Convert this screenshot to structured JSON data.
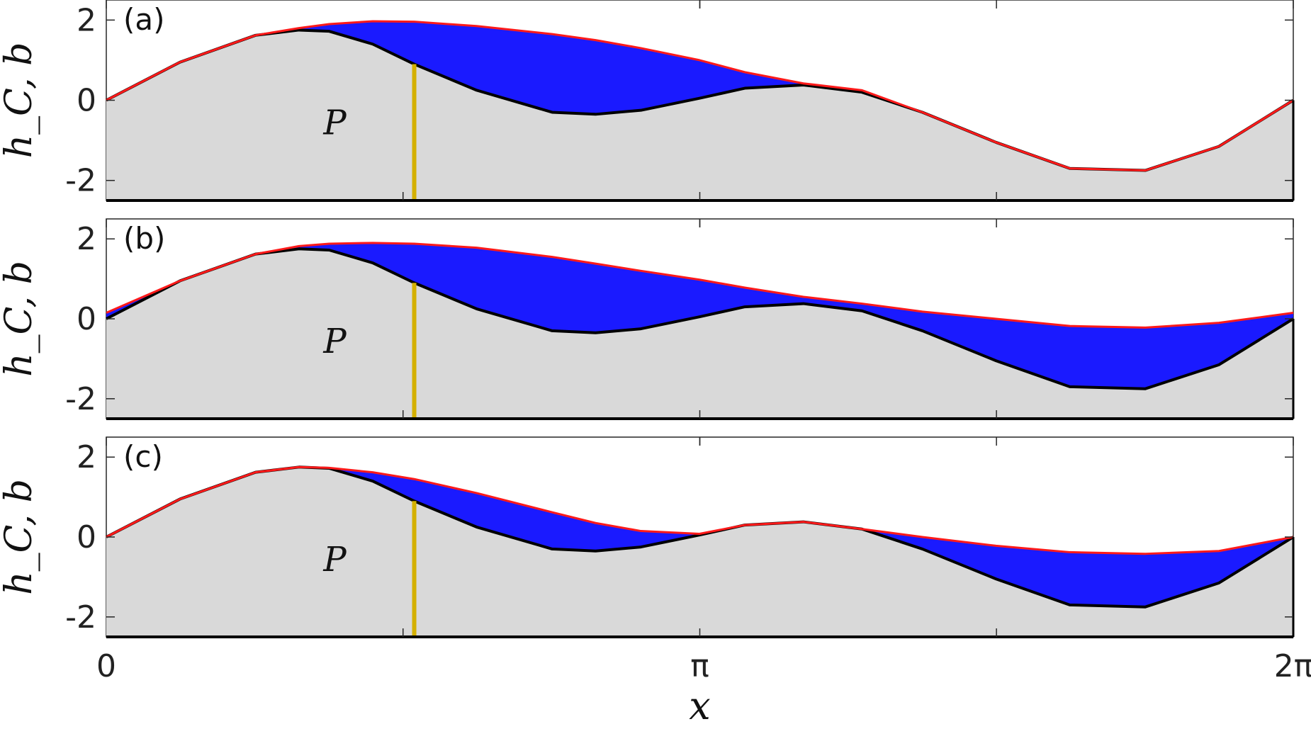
{
  "chart_data": [
    {
      "type": "area",
      "panel_label": "(a)",
      "region_label": "P",
      "ylabel": "h_C, b",
      "xlabel": "",
      "xlim": [
        0,
        6.2832
      ],
      "ylim": [
        -2.5,
        2.5
      ],
      "yticks": [
        -2,
        0,
        2
      ],
      "ytick_labels": [
        "-2",
        "0",
        "2"
      ],
      "marker_x": 1.63,
      "series": [
        {
          "role": "bed",
          "color": "#000000",
          "x": [
            0,
            0.39,
            0.79,
            1.02,
            1.18,
            1.41,
            1.63,
            1.96,
            2.36,
            2.59,
            2.83,
            3.14,
            3.38,
            3.69,
            4.0,
            4.32,
            4.71,
            5.1,
            5.5,
            5.89,
            6.2832
          ],
          "y": [
            0,
            0.95,
            1.62,
            1.75,
            1.72,
            1.4,
            0.9,
            0.25,
            -0.3,
            -0.35,
            -0.25,
            0.05,
            0.3,
            0.38,
            0.2,
            -0.3,
            -1.05,
            -1.7,
            -1.75,
            -1.15,
            0
          ]
        },
        {
          "role": "surface",
          "color": "#ff1a1a",
          "x": [
            0,
            0.39,
            0.79,
            1.02,
            1.18,
            1.41,
            1.63,
            1.96,
            2.36,
            2.59,
            2.83,
            3.14,
            3.38,
            3.69,
            4.0,
            4.32,
            4.71,
            5.1,
            5.5,
            5.89,
            6.2832
          ],
          "y": [
            0,
            0.95,
            1.62,
            1.8,
            1.9,
            1.97,
            1.96,
            1.85,
            1.65,
            1.5,
            1.3,
            1.0,
            0.7,
            0.42,
            0.25,
            -0.3,
            -1.05,
            -1.7,
            -1.75,
            -1.15,
            0
          ]
        }
      ]
    },
    {
      "type": "area",
      "panel_label": "(b)",
      "region_label": "P",
      "ylabel": "h_C, b",
      "xlabel": "",
      "xlim": [
        0,
        6.2832
      ],
      "ylim": [
        -2.5,
        2.5
      ],
      "yticks": [
        -2,
        0,
        2
      ],
      "ytick_labels": [
        "-2",
        "0",
        "2"
      ],
      "marker_x": 1.63,
      "series": [
        {
          "role": "bed",
          "color": "#000000",
          "x": [
            0,
            0.39,
            0.79,
            1.02,
            1.18,
            1.41,
            1.63,
            1.96,
            2.36,
            2.59,
            2.83,
            3.14,
            3.38,
            3.69,
            4.0,
            4.32,
            4.71,
            5.1,
            5.5,
            5.89,
            6.2832
          ],
          "y": [
            0,
            0.95,
            1.62,
            1.75,
            1.72,
            1.4,
            0.9,
            0.25,
            -0.3,
            -0.35,
            -0.25,
            0.05,
            0.3,
            0.38,
            0.2,
            -0.3,
            -1.05,
            -1.7,
            -1.75,
            -1.15,
            0
          ]
        },
        {
          "role": "surface",
          "color": "#ff1a1a",
          "x": [
            0,
            0.39,
            0.79,
            1.02,
            1.18,
            1.41,
            1.63,
            1.96,
            2.36,
            2.59,
            2.83,
            3.14,
            3.38,
            3.69,
            4.0,
            4.32,
            4.71,
            5.1,
            5.5,
            5.89,
            6.2832
          ],
          "y": [
            0.15,
            0.95,
            1.62,
            1.82,
            1.88,
            1.9,
            1.88,
            1.78,
            1.55,
            1.38,
            1.2,
            0.98,
            0.78,
            0.55,
            0.38,
            0.18,
            0.0,
            -0.18,
            -0.22,
            -0.1,
            0.15
          ]
        }
      ]
    },
    {
      "type": "area",
      "panel_label": "(c)",
      "region_label": "P",
      "ylabel": "h_C, b",
      "xlabel": "x",
      "xlim": [
        0,
        6.2832
      ],
      "ylim": [
        -2.5,
        2.5
      ],
      "yticks": [
        -2,
        0,
        2
      ],
      "ytick_labels": [
        "-2",
        "0",
        "2"
      ],
      "xticks": [
        0,
        3.1416,
        6.2832
      ],
      "xtick_labels": [
        "0",
        "π",
        "2π"
      ],
      "marker_x": 1.63,
      "series": [
        {
          "role": "bed",
          "color": "#000000",
          "x": [
            0,
            0.39,
            0.79,
            1.02,
            1.18,
            1.41,
            1.63,
            1.96,
            2.36,
            2.59,
            2.83,
            3.14,
            3.38,
            3.69,
            4.0,
            4.32,
            4.71,
            5.1,
            5.5,
            5.89,
            6.2832
          ],
          "y": [
            0,
            0.95,
            1.62,
            1.75,
            1.72,
            1.4,
            0.9,
            0.25,
            -0.3,
            -0.35,
            -0.25,
            0.05,
            0.3,
            0.38,
            0.2,
            -0.3,
            -1.05,
            -1.7,
            -1.75,
            -1.15,
            0
          ]
        },
        {
          "role": "surface",
          "color": "#ff1a1a",
          "x": [
            0,
            0.39,
            0.79,
            1.02,
            1.18,
            1.41,
            1.63,
            1.96,
            2.36,
            2.59,
            2.83,
            3.14,
            3.38,
            3.69,
            4.0,
            4.32,
            4.71,
            5.1,
            5.5,
            5.89,
            6.2832
          ],
          "y": [
            0,
            0.95,
            1.62,
            1.75,
            1.73,
            1.62,
            1.45,
            1.1,
            0.62,
            0.35,
            0.15,
            0.08,
            0.3,
            0.38,
            0.2,
            0.0,
            -0.22,
            -0.38,
            -0.42,
            -0.35,
            0
          ]
        }
      ]
    }
  ],
  "colors": {
    "bed_fill": "#d9d9d9",
    "water_fill": "#1a1aff",
    "surface_line": "#ff1a1a",
    "bed_line": "#000000",
    "marker": "#d4b000"
  }
}
